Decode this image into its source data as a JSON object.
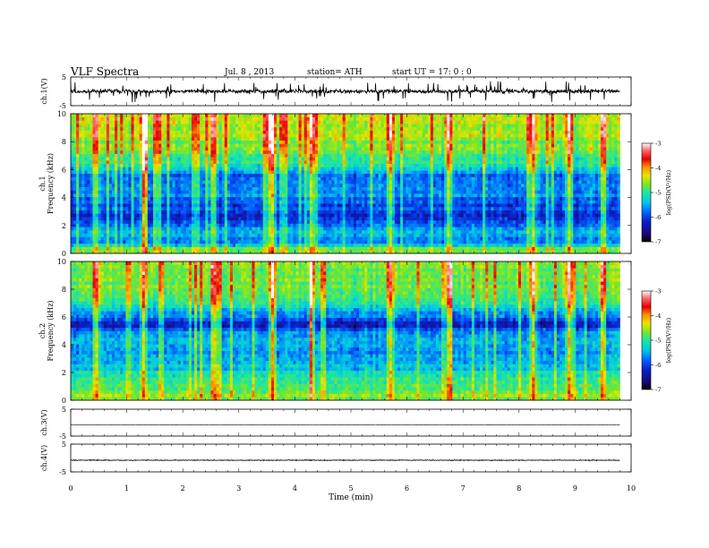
{
  "header": {
    "title": "VLF Spectra",
    "date": "Jul. 8 , 2013",
    "station": "station= ATH",
    "start": "start UT = 17: 0 : 0"
  },
  "colors": {
    "background": "#ffffff",
    "trace": "#000000",
    "colormap": [
      "#000000",
      "#1a0a7a",
      "#0a1ec8",
      "#0064ff",
      "#00c8e6",
      "#1ee6a0",
      "#78e628",
      "#e6e600",
      "#ff8c00",
      "#e60000",
      "#ff6e6e",
      "#ffffff"
    ]
  },
  "chart_data": [
    {
      "type": "line",
      "panel": "ch1",
      "ylabel": "ch.1(V)",
      "ylim": [
        -5,
        5
      ],
      "yticks": [
        "5",
        "-5"
      ],
      "xlim": [
        0,
        9.8
      ],
      "baseline": 0.0,
      "noise_amplitude": 1.2,
      "spike_amplitude": 3.5
    },
    {
      "type": "heatmap",
      "panel": "ch1-spectrogram",
      "ylabel": "ch.1\nFrequency (kHz)",
      "ylim": [
        0,
        10
      ],
      "yticks": [
        "0",
        "2",
        "4",
        "6",
        "8",
        "10"
      ],
      "xlim": [
        0,
        9.8
      ],
      "colorbar": {
        "label": "log(PSD(V²/Hz)",
        "range": [
          -7,
          -3
        ],
        "ticks": [
          "-3",
          "-4",
          "-5",
          "-6",
          "-7"
        ]
      },
      "level_profile": [
        {
          "f": 0.3,
          "level": -4.8
        },
        {
          "f": 0.8,
          "level": -5.8
        },
        {
          "f": 1.5,
          "level": -5.6
        },
        {
          "f": 2.5,
          "level": -6.2
        },
        {
          "f": 3.5,
          "level": -6.0
        },
        {
          "f": 4.5,
          "level": -5.8
        },
        {
          "f": 5.5,
          "level": -5.9
        },
        {
          "f": 6.5,
          "level": -5.2
        },
        {
          "f": 7.5,
          "level": -4.9
        },
        {
          "f": 8.5,
          "level": -4.7
        },
        {
          "f": 9.5,
          "level": -4.6
        }
      ],
      "strong_events_min": [
        0.45,
        1.3,
        2.55,
        3.6,
        4.3,
        5.7,
        6.75,
        8.25,
        8.9,
        9.5
      ]
    },
    {
      "type": "heatmap",
      "panel": "ch2-spectrogram",
      "ylabel": "ch.2\nFrequency (kHz)",
      "ylim": [
        0,
        10
      ],
      "yticks": [
        "0",
        "2",
        "4",
        "6",
        "8",
        "10"
      ],
      "xlim": [
        0,
        9.8
      ],
      "colorbar": {
        "label": "log(PSD(V²/Hz)",
        "range": [
          -7,
          -3
        ],
        "ticks": [
          "-3",
          "-4",
          "-5",
          "-6",
          "-7"
        ]
      },
      "level_profile": [
        {
          "f": 0.3,
          "level": -4.9
        },
        {
          "f": 0.8,
          "level": -5.0
        },
        {
          "f": 1.5,
          "level": -5.1
        },
        {
          "f": 2.5,
          "level": -5.5
        },
        {
          "f": 3.5,
          "level": -5.8
        },
        {
          "f": 4.5,
          "level": -5.6
        },
        {
          "f": 5.5,
          "level": -6.3
        },
        {
          "f": 6.5,
          "level": -5.6
        },
        {
          "f": 7.5,
          "level": -5.0
        },
        {
          "f": 8.5,
          "level": -4.9
        },
        {
          "f": 9.5,
          "level": -4.8
        }
      ],
      "strong_events_min": [
        0.45,
        1.3,
        2.55,
        3.6,
        4.3,
        5.7,
        6.75,
        8.25,
        8.9,
        9.5
      ]
    },
    {
      "type": "line",
      "panel": "ch3",
      "ylabel": "ch.3(V)",
      "ylim": [
        -5,
        5
      ],
      "yticks": [
        "5",
        "-5"
      ],
      "xlim": [
        0,
        9.8
      ],
      "baseline": -0.8,
      "noise_amplitude": 0.05,
      "spike_amplitude": 0.0
    },
    {
      "type": "line",
      "panel": "ch4",
      "ylabel": "ch.4(V)",
      "ylim": [
        -5,
        5
      ],
      "yticks": [
        "5",
        "-5"
      ],
      "xlim": [
        0,
        9.8
      ],
      "baseline": -0.8,
      "noise_amplitude": 0.25,
      "spike_amplitude": 0.0
    }
  ],
  "xaxis": {
    "label": "Time (min)",
    "range": [
      0,
      10
    ],
    "ticks": [
      "0",
      "1",
      "2",
      "3",
      "4",
      "5",
      "6",
      "7",
      "8",
      "9",
      "10"
    ]
  }
}
